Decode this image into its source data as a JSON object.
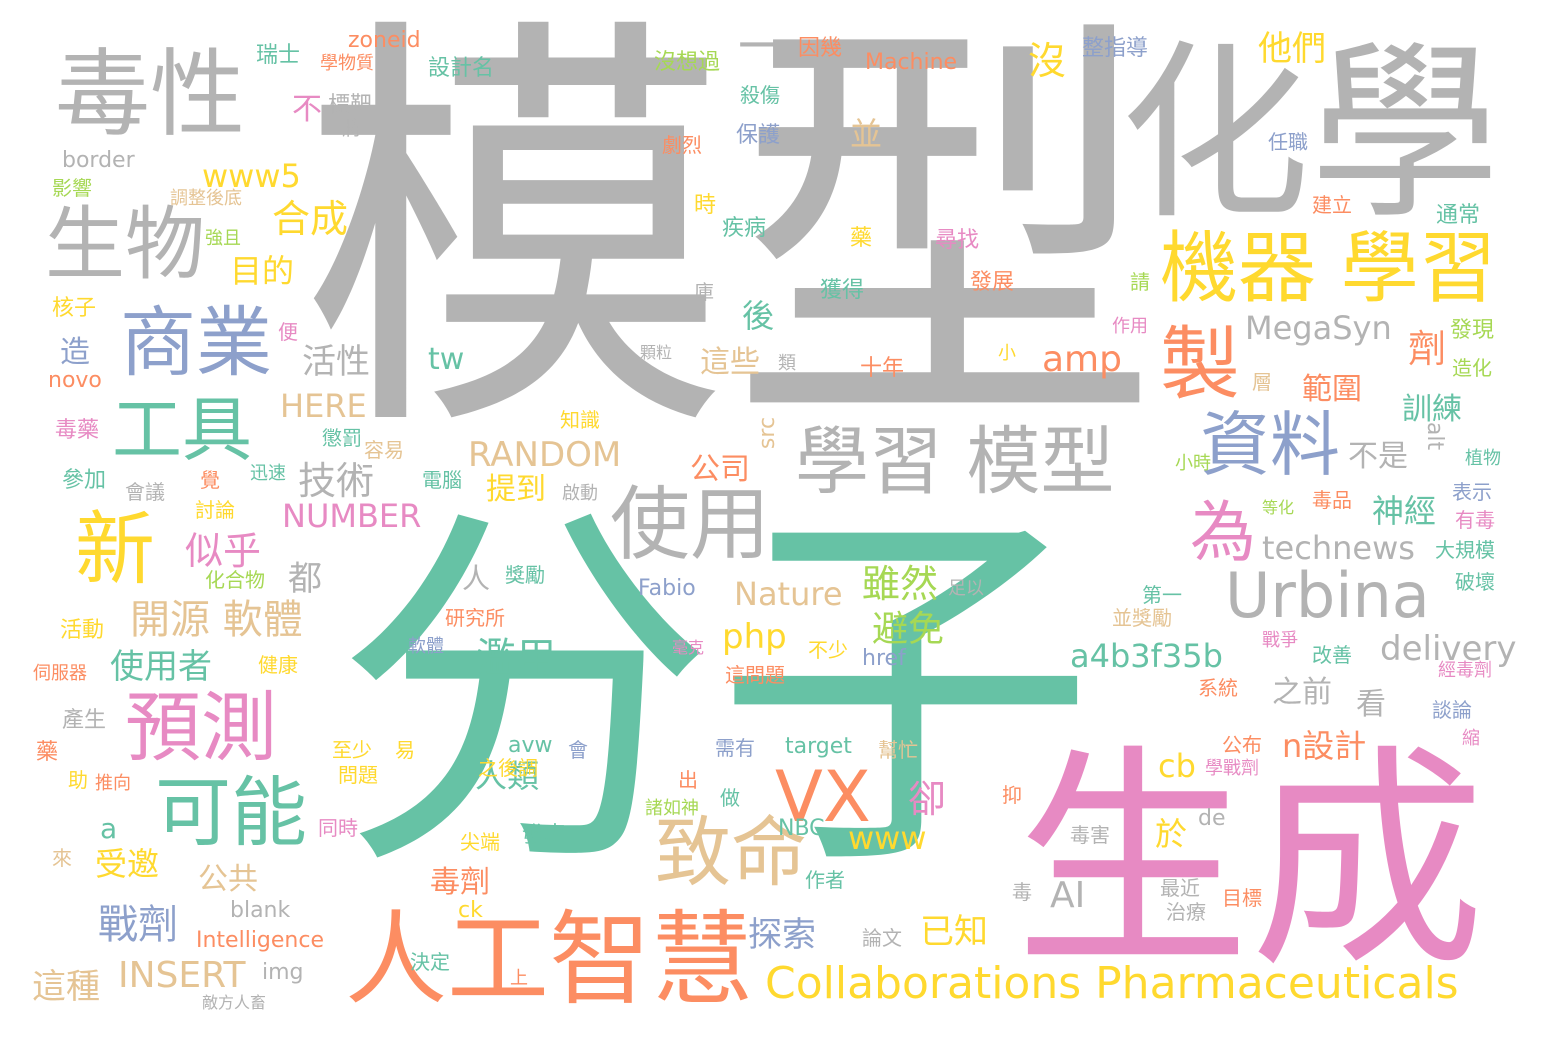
{
  "palette": {
    "teal": "#66c2a5",
    "orange": "#fc8d62",
    "blue": "#8da0cb",
    "pink": "#e78ac3",
    "green": "#a6d854",
    "yellow": "#ffd92f",
    "tan": "#e5c494",
    "gray": "#b3b3b3"
  },
  "words": [
    {
      "text": "模型",
      "color": "gray"
    },
    {
      "text": "分子",
      "color": "teal"
    },
    {
      "text": "生成",
      "color": "pink"
    },
    {
      "text": "化學",
      "color": "gray"
    },
    {
      "text": "毒性",
      "color": "gray"
    },
    {
      "text": "生物",
      "color": "gray"
    },
    {
      "text": "人工智慧",
      "color": "orange"
    },
    {
      "text": "機器 學習",
      "color": "yellow"
    },
    {
      "text": "學習 模型",
      "color": "gray"
    },
    {
      "text": "使用",
      "color": "gray"
    },
    {
      "text": "商業",
      "color": "blue"
    },
    {
      "text": "工具",
      "color": "teal"
    },
    {
      "text": "新",
      "color": "yellow"
    },
    {
      "text": "預測",
      "color": "pink"
    },
    {
      "text": "可能",
      "color": "teal"
    },
    {
      "text": "致命",
      "color": "tan"
    },
    {
      "text": "VX",
      "color": "orange"
    },
    {
      "text": "Urbina",
      "color": "gray"
    },
    {
      "text": "Collaborations Pharmaceuticals",
      "color": "yellow"
    },
    {
      "text": "資料",
      "color": "blue"
    },
    {
      "text": "製",
      "color": "orange"
    },
    {
      "text": "為",
      "color": "pink"
    },
    {
      "text": "一",
      "color": "gray"
    },
    {
      "text": "沒",
      "color": "yellow"
    },
    {
      "text": "他們",
      "color": "yellow"
    },
    {
      "text": "MegaSyn",
      "color": "gray"
    },
    {
      "text": "amp",
      "color": "orange"
    },
    {
      "text": "技術",
      "color": "gray"
    },
    {
      "text": "RANDOM",
      "color": "tan"
    },
    {
      "text": "NUMBER",
      "color": "pink"
    },
    {
      "text": "開源 軟體",
      "color": "tan"
    },
    {
      "text": "似乎",
      "color": "pink"
    },
    {
      "text": "合成",
      "color": "yellow"
    },
    {
      "text": "www5",
      "color": "yellow"
    },
    {
      "text": "目的",
      "color": "yellow"
    },
    {
      "text": "活性",
      "color": "gray"
    },
    {
      "text": "HERE",
      "color": "tan"
    },
    {
      "text": "雖然",
      "color": "green"
    },
    {
      "text": "避免",
      "color": "green"
    },
    {
      "text": "濫用",
      "color": "teal"
    },
    {
      "text": "使用者",
      "color": "teal"
    },
    {
      "text": "戰劑",
      "color": "blue"
    },
    {
      "text": "INSERT",
      "color": "tan"
    },
    {
      "text": "Nature",
      "color": "tan"
    },
    {
      "text": "php",
      "color": "yellow"
    },
    {
      "text": "a4b3f35b",
      "color": "teal"
    },
    {
      "text": "delivery",
      "color": "gray"
    },
    {
      "text": "technews",
      "color": "gray"
    },
    {
      "text": "神經",
      "color": "teal"
    },
    {
      "text": "訓練",
      "color": "teal"
    },
    {
      "text": "範圍",
      "color": "orange"
    },
    {
      "text": "不是",
      "color": "gray"
    },
    {
      "text": "劑",
      "color": "orange"
    },
    {
      "text": "www",
      "color": "yellow"
    },
    {
      "text": "卻",
      "color": "pink"
    },
    {
      "text": "AI",
      "color": "gray"
    },
    {
      "text": "毒劑",
      "color": "orange"
    },
    {
      "text": "探索",
      "color": "blue"
    },
    {
      "text": "已知",
      "color": "yellow"
    },
    {
      "text": "人類",
      "color": "teal"
    },
    {
      "text": "cb",
      "color": "yellow"
    },
    {
      "text": "n設計",
      "color": "orange"
    },
    {
      "text": "提到",
      "color": "yellow"
    },
    {
      "text": "公司",
      "color": "orange"
    },
    {
      "text": "後",
      "color": "teal"
    },
    {
      "text": "這些",
      "color": "tan"
    },
    {
      "text": "並",
      "color": "tan"
    },
    {
      "text": "都",
      "color": "gray"
    },
    {
      "text": "受邀",
      "color": "yellow"
    },
    {
      "text": "公共",
      "color": "tan"
    },
    {
      "text": "這種",
      "color": "tan"
    },
    {
      "text": "Intelligence",
      "color": "orange"
    },
    {
      "text": "tw",
      "color": "teal"
    },
    {
      "text": "Machine",
      "color": "orange"
    },
    {
      "text": "zoneid",
      "color": "orange"
    },
    {
      "text": "border",
      "color": "gray"
    },
    {
      "text": "Fabio",
      "color": "blue"
    },
    {
      "text": "target",
      "color": "teal"
    },
    {
      "text": "href",
      "color": "blue"
    },
    {
      "text": "NBC",
      "color": "teal"
    },
    {
      "text": "之前",
      "color": "gray"
    },
    {
      "text": "看",
      "color": "gray"
    },
    {
      "text": "人",
      "color": "gray"
    },
    {
      "text": "於",
      "color": "yellow"
    },
    {
      "text": "a",
      "color": "teal"
    },
    {
      "text": "造",
      "color": "blue"
    },
    {
      "text": "不",
      "color": "pink"
    },
    {
      "text": "novo",
      "color": "orange"
    },
    {
      "text": "blank",
      "color": "gray"
    },
    {
      "text": "img",
      "color": "gray"
    },
    {
      "text": "src",
      "color": "tan"
    },
    {
      "text": "alt",
      "color": "gray"
    },
    {
      "text": "de",
      "color": "gray"
    },
    {
      "text": "ck",
      "color": "yellow"
    },
    {
      "text": "avw",
      "color": "teal"
    },
    {
      "text": "大規模",
      "color": "teal"
    },
    {
      "text": "破壞",
      "color": "teal"
    },
    {
      "text": "有毒",
      "color": "pink"
    },
    {
      "text": "表示",
      "color": "blue"
    },
    {
      "text": "植物",
      "color": "teal"
    },
    {
      "text": "發現",
      "color": "green"
    },
    {
      "text": "造化",
      "color": "green"
    },
    {
      "text": "通常",
      "color": "teal"
    },
    {
      "text": "建立",
      "color": "orange"
    },
    {
      "text": "任職",
      "color": "blue"
    },
    {
      "text": "整指導",
      "color": "blue"
    },
    {
      "text": "Machine",
      "color": "orange"
    },
    {
      "text": "因幾",
      "color": "orange"
    },
    {
      "text": "沒想過",
      "color": "green"
    },
    {
      "text": "設計名",
      "color": "teal"
    },
    {
      "text": "瑞士",
      "color": "teal"
    },
    {
      "text": "學物質",
      "color": "orange"
    },
    {
      "text": "標靶",
      "color": "gray"
    },
    {
      "text": "將",
      "color": "gray"
    },
    {
      "text": "殺傷",
      "color": "teal"
    },
    {
      "text": "保護",
      "color": "blue"
    },
    {
      "text": "劇烈",
      "color": "orange"
    },
    {
      "text": "影響",
      "color": "green"
    },
    {
      "text": "調整後底",
      "color": "tan"
    },
    {
      "text": "強且",
      "color": "green"
    },
    {
      "text": "核子",
      "color": "yellow"
    },
    {
      "text": "便",
      "color": "pink"
    },
    {
      "text": "毒藥",
      "color": "pink"
    },
    {
      "text": "參加",
      "color": "teal"
    },
    {
      "text": "懲罰",
      "color": "teal"
    },
    {
      "text": "迅速",
      "color": "teal"
    },
    {
      "text": "容易",
      "color": "tan"
    },
    {
      "text": "會議",
      "color": "gray"
    },
    {
      "text": "電腦",
      "color": "teal"
    },
    {
      "text": "覺",
      "color": "orange"
    },
    {
      "text": "討論",
      "color": "yellow"
    },
    {
      "text": "化合物",
      "color": "green"
    },
    {
      "text": "活動",
      "color": "yellow"
    },
    {
      "text": "伺服器",
      "color": "orange"
    },
    {
      "text": "健康",
      "color": "yellow"
    },
    {
      "text": "產生",
      "color": "gray"
    },
    {
      "text": "藥",
      "color": "orange"
    },
    {
      "text": "助",
      "color": "yellow"
    },
    {
      "text": "推向",
      "color": "orange"
    },
    {
      "text": "來",
      "color": "tan"
    },
    {
      "text": "敵方人畜",
      "color": "gray"
    },
    {
      "text": "上",
      "color": "orange"
    },
    {
      "text": "決定",
      "color": "teal"
    },
    {
      "text": "論文",
      "color": "gray"
    },
    {
      "text": "作者",
      "color": "teal"
    },
    {
      "text": "尖端",
      "color": "yellow"
    },
    {
      "text": "發表",
      "color": "teal"
    },
    {
      "text": "諸如神",
      "color": "green"
    },
    {
      "text": "出",
      "color": "orange"
    },
    {
      "text": "做",
      "color": "teal"
    },
    {
      "text": "之後調",
      "color": "yellow"
    },
    {
      "text": "會",
      "color": "blue"
    },
    {
      "text": "問題",
      "color": "yellow"
    },
    {
      "text": "至少",
      "color": "yellow"
    },
    {
      "text": "易",
      "color": "yellow"
    },
    {
      "text": "同時",
      "color": "pink"
    },
    {
      "text": "需有",
      "color": "blue"
    },
    {
      "text": "幫忙",
      "color": "tan"
    },
    {
      "text": "這問題",
      "color": "orange"
    },
    {
      "text": "毫克",
      "color": "pink"
    },
    {
      "text": "不少",
      "color": "yellow"
    },
    {
      "text": "軟體",
      "color": "blue"
    },
    {
      "text": "研究所",
      "color": "orange"
    },
    {
      "text": "獎勵",
      "color": "teal"
    },
    {
      "text": "第一",
      "color": "teal"
    },
    {
      "text": "並獎勵",
      "color": "tan"
    },
    {
      "text": "足以",
      "color": "gray"
    },
    {
      "text": "戰爭",
      "color": "pink"
    },
    {
      "text": "改善",
      "color": "teal"
    },
    {
      "text": "經毒劑",
      "color": "pink"
    },
    {
      "text": "系統",
      "color": "orange"
    },
    {
      "text": "談論",
      "color": "blue"
    },
    {
      "text": "縮",
      "color": "pink"
    },
    {
      "text": "公布",
      "color": "orange"
    },
    {
      "text": "學戰劑",
      "color": "pink"
    },
    {
      "text": "抑",
      "color": "orange"
    },
    {
      "text": "毒害",
      "color": "gray"
    },
    {
      "text": "最近",
      "color": "gray"
    },
    {
      "text": "治療",
      "color": "gray"
    },
    {
      "text": "毒",
      "color": "gray"
    },
    {
      "text": "目標",
      "color": "orange"
    },
    {
      "text": "毒品",
      "color": "orange"
    },
    {
      "text": "等化",
      "color": "green"
    },
    {
      "text": "小時",
      "color": "green"
    },
    {
      "text": "層",
      "color": "tan"
    },
    {
      "text": "作用",
      "color": "pink"
    },
    {
      "text": "請",
      "color": "green"
    },
    {
      "text": "小",
      "color": "yellow"
    },
    {
      "text": "發展",
      "color": "orange"
    },
    {
      "text": "尋找",
      "color": "pink"
    },
    {
      "text": "獲得",
      "color": "teal"
    },
    {
      "text": "疾病",
      "color": "teal"
    },
    {
      "text": "時",
      "color": "yellow"
    },
    {
      "text": "庫",
      "color": "gray"
    },
    {
      "text": "顆粒",
      "color": "gray"
    },
    {
      "text": "類",
      "color": "gray"
    },
    {
      "text": "十年",
      "color": "orange"
    },
    {
      "text": "知識",
      "color": "yellow"
    },
    {
      "text": "啟動",
      "color": "gray"
    }
  ]
}
